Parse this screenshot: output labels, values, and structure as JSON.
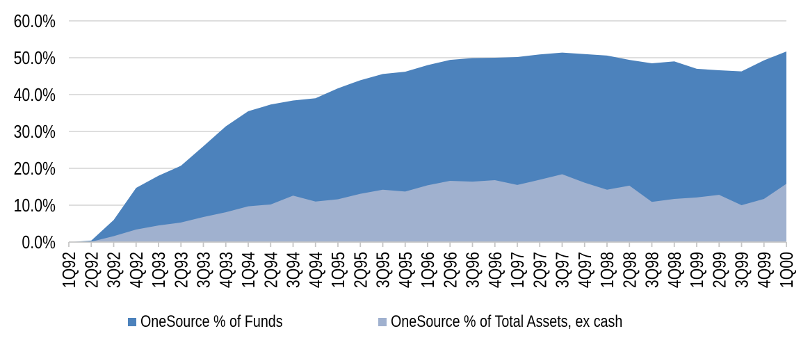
{
  "page": {
    "background": "#FFFFFF"
  },
  "chart_data": {
    "type": "area",
    "title": "",
    "overlap_mode": "overlapping-not-stacked",
    "categories": [
      "1Q92",
      "2Q92",
      "3Q92",
      "4Q92",
      "1Q93",
      "2Q93",
      "3Q93",
      "4Q93",
      "1Q94",
      "2Q94",
      "3Q94",
      "4Q94",
      "1Q95",
      "2Q95",
      "3Q95",
      "4Q95",
      "1Q96",
      "2Q96",
      "3Q96",
      "4Q96",
      "1Q97",
      "2Q97",
      "3Q97",
      "4Q97",
      "1Q98",
      "2Q98",
      "3Q98",
      "4Q98",
      "1Q99",
      "2Q99",
      "3Q99",
      "4Q99",
      "1Q00"
    ],
    "series": [
      {
        "name": "OneSource % of Funds",
        "color": "#4C82BC",
        "values": [
          0,
          0.4,
          6.0,
          14.7,
          18.0,
          20.7,
          26.0,
          31.4,
          35.5,
          37.3,
          38.4,
          39.0,
          41.7,
          43.9,
          45.6,
          46.2,
          48.0,
          49.4,
          49.9,
          50.0,
          50.2,
          50.9,
          51.4,
          51.0,
          50.6,
          49.4,
          48.5,
          49.0,
          47.0,
          46.6,
          46.3,
          49.3,
          51.7
        ]
      },
      {
        "name": "OneSource % of Total Assets, ex cash",
        "color": "#A0B1CF",
        "values": [
          0,
          0.1,
          1.6,
          3.4,
          4.5,
          5.3,
          6.8,
          8.1,
          9.7,
          10.2,
          12.6,
          11.0,
          11.6,
          13.1,
          14.2,
          13.7,
          15.4,
          16.6,
          16.4,
          16.8,
          15.5,
          16.9,
          18.4,
          16.1,
          14.2,
          15.3,
          10.9,
          11.7,
          12.1,
          12.8,
          10.0,
          11.7,
          15.8
        ]
      }
    ],
    "y_axis": {
      "min": 0,
      "max": 60,
      "step": 10,
      "tick_labels": [
        "0.0%",
        "10.0%",
        "20.0%",
        "30.0%",
        "40.0%",
        "50.0%",
        "60.0%"
      ],
      "format": "percent"
    },
    "x_axis": {
      "label_rotation_deg": -90
    },
    "grid": {
      "show": true,
      "color": "#D9D9D9"
    },
    "axis_color": "#C6C6C6",
    "text_color": "#000000",
    "legend_position": "bottom"
  }
}
